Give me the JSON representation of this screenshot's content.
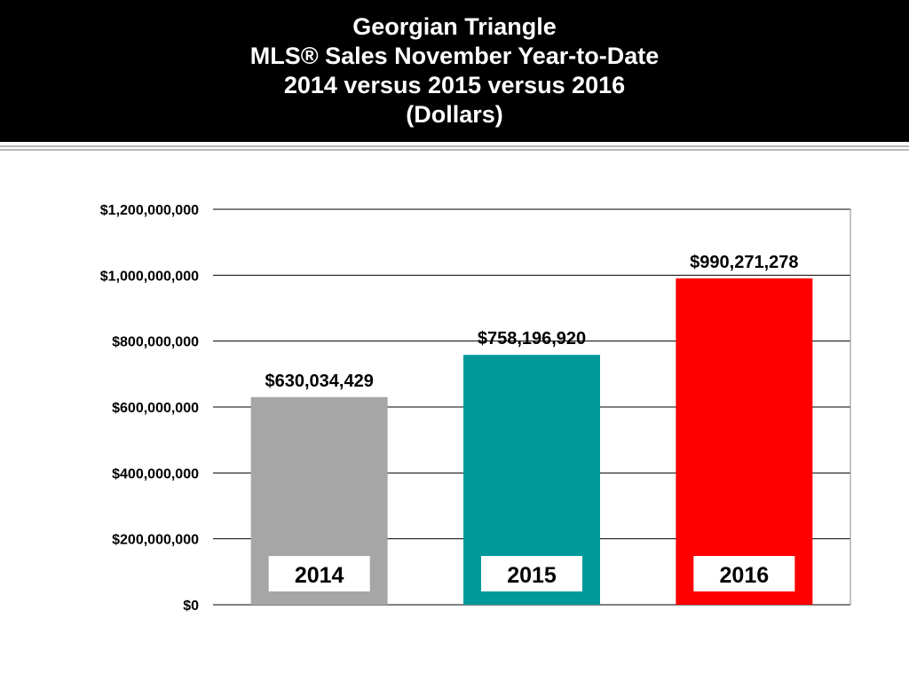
{
  "title": {
    "lines": [
      "Georgian Triangle",
      "MLS® Sales November Year-to-Date",
      "2014 versus 2015 versus 2016",
      "(Dollars)"
    ]
  },
  "colors": {
    "title_band": "#000000",
    "title_text": "#ffffff",
    "gridline": "#000000",
    "category_box": "#ffffff"
  },
  "chart_data": {
    "type": "bar",
    "title": "Georgian Triangle MLS® Sales November Year-to-Date 2014 versus 2015 versus 2016 (Dollars)",
    "categories": [
      "2014",
      "2015",
      "2016"
    ],
    "values": [
      630034429,
      758196920,
      990271278
    ],
    "data_labels": [
      "$630,034,429",
      "$758,196,920",
      "$990,271,278"
    ],
    "bar_colors": [
      "#a6a6a6",
      "#009999",
      "#ff0000"
    ],
    "ylim": [
      0,
      1200000000
    ],
    "yticks": [
      0,
      200000000,
      400000000,
      600000000,
      800000000,
      1000000000,
      1200000000
    ],
    "ytick_labels": [
      "$0",
      "$200,000,000",
      "$400,000,000",
      "$600,000,000",
      "$800,000,000",
      "$1,000,000,000",
      "$1,200,000,000"
    ],
    "xlabel": "",
    "ylabel": "",
    "grid": true,
    "legend": "none",
    "category_labels_inside_bars": true
  }
}
